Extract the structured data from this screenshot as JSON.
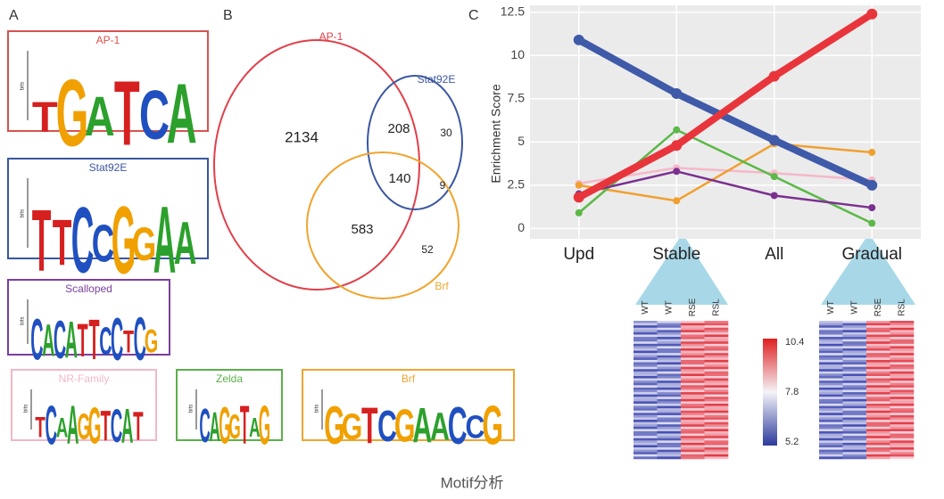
{
  "panels": [
    "A",
    "B",
    "C"
  ],
  "motifs": [
    {
      "title": "AP-1",
      "logo": "TGATCA",
      "y_label": "bits"
    },
    {
      "title": "Stat92E",
      "logo": "TTCCGGAA",
      "y_label": "bits"
    },
    {
      "title": "Scalloped",
      "logo": "CACATTCCTCG",
      "y_label": "bits"
    },
    {
      "title": "NR-Family",
      "logo": "TCAAGGTCAT",
      "y_label": "bits"
    },
    {
      "title": "Zelda",
      "logo": "CAGGTAG",
      "y_label": "bits"
    },
    {
      "title": "Brf",
      "logo": "GGTCGAACCG",
      "y_label": "bits"
    }
  ],
  "venn": {
    "sets": [
      "AP-1",
      "Stat92E",
      "Brf"
    ],
    "counts": [
      2134,
      208,
      30,
      140,
      9,
      583,
      52
    ]
  },
  "chart_data": {
    "type": "line",
    "y_label": "Enrichment Score",
    "categories": [
      "Upd",
      "Stable",
      "All",
      "Gradual"
    ],
    "ylim": [
      -0.6,
      12.9
    ],
    "yticks": [
      0,
      2.5,
      5,
      7.5,
      10,
      12.5
    ],
    "grid": true,
    "series": [
      {
        "color": "#f5b8c8",
        "values": [
          2.6,
          3.5,
          3.2,
          2.8
        ]
      },
      {
        "color": "#f0a030",
        "values": [
          2.5,
          1.6,
          4.9,
          4.4
        ]
      },
      {
        "color": "#5cb848",
        "values": [
          0.9,
          5.7,
          3.0,
          0.3
        ]
      },
      {
        "color": "#7b3090",
        "values": [
          2.0,
          3.3,
          1.9,
          1.2
        ]
      },
      {
        "color": "#3f5aa8",
        "values": [
          10.9,
          7.8,
          5.1,
          2.5
        ]
      },
      {
        "color": "#e8353b",
        "values": [
          1.8,
          4.8,
          8.8,
          12.4
        ]
      }
    ]
  },
  "heatmap": {
    "columns": [
      "WT",
      "WT",
      "RSE",
      "RSL"
    ],
    "colorbar_ticks": [
      10.4,
      7.8,
      5.2
    ]
  },
  "caption": "Motif分析"
}
